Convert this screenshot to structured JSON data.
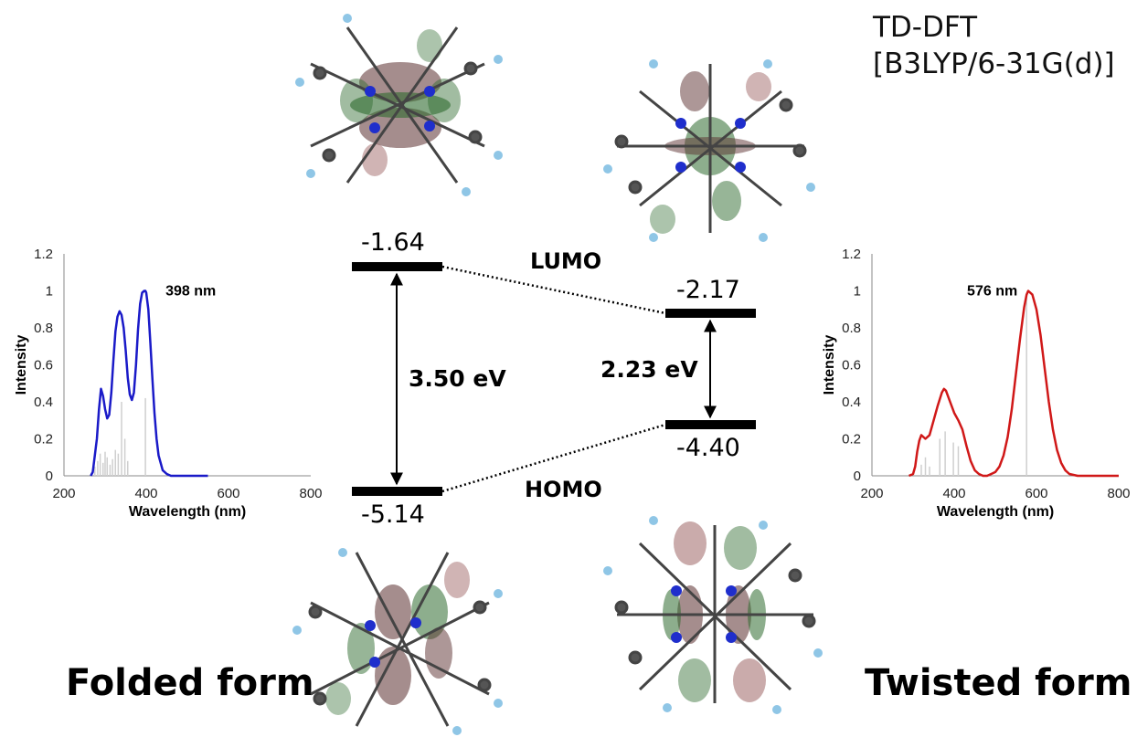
{
  "method": {
    "line1": "TD-DFT",
    "line2": "[B3LYP/6-31G(d)]"
  },
  "forms": {
    "folded": "Folded form",
    "twisted": "Twisted form"
  },
  "energy_diagram": {
    "lumo_label": "LUMO",
    "homo_label": "HOMO",
    "folded": {
      "lumo": "-1.64",
      "homo": "-5.14",
      "gap": "3.50 eV"
    },
    "twisted": {
      "lumo": "-2.17",
      "homo": "-4.40",
      "gap": "2.23 eV"
    }
  },
  "chart_data": [
    {
      "type": "line",
      "xlabel": "Wavelength (nm)",
      "ylabel": "Intensity",
      "xlim": [
        200,
        800
      ],
      "ylim": [
        0,
        1.2
      ],
      "xticks": [
        "200",
        "400",
        "600",
        "800"
      ],
      "yticks": [
        "0",
        "0.2",
        "0.4",
        "0.6",
        "0.8",
        "1",
        "1.2"
      ],
      "annotation": "398 nm",
      "color": "#1a1ac8",
      "grid": false,
      "series": [
        {
          "x": [
            265,
            270,
            280,
            285,
            290,
            295,
            300,
            305,
            310,
            315,
            320,
            325,
            330,
            335,
            340,
            345,
            350,
            355,
            360,
            365,
            370,
            375,
            380,
            385,
            390,
            395,
            398,
            400,
            405,
            410,
            415,
            420,
            425,
            430,
            440,
            450,
            460,
            480,
            500,
            520,
            550
          ],
          "y": [
            0,
            0.02,
            0.2,
            0.36,
            0.47,
            0.43,
            0.36,
            0.31,
            0.33,
            0.45,
            0.62,
            0.78,
            0.86,
            0.89,
            0.87,
            0.8,
            0.68,
            0.53,
            0.44,
            0.41,
            0.45,
            0.6,
            0.79,
            0.93,
            0.99,
            1.0,
            1.0,
            0.99,
            0.9,
            0.72,
            0.52,
            0.34,
            0.2,
            0.11,
            0.03,
            0.01,
            0,
            0,
            0,
            0,
            0
          ]
        }
      ],
      "sticks": {
        "x": [
          275,
          282,
          288,
          295,
          300,
          305,
          312,
          318,
          325,
          332,
          340,
          348,
          355,
          398
        ],
        "y": [
          0.05,
          0.08,
          0.12,
          0.07,
          0.13,
          0.1,
          0.06,
          0.09,
          0.14,
          0.12,
          0.4,
          0.2,
          0.08,
          0.42
        ]
      }
    },
    {
      "type": "line",
      "xlabel": "Wavelength (nm)",
      "ylabel": "Intensity",
      "xlim": [
        200,
        800
      ],
      "ylim": [
        0,
        1.2
      ],
      "xticks": [
        "200",
        "400",
        "600",
        "800"
      ],
      "yticks": [
        "0",
        "0.2",
        "0.4",
        "0.6",
        "0.8",
        "1",
        "1.2"
      ],
      "annotation": "576 nm",
      "color": "#d01818",
      "grid": false,
      "series": [
        {
          "x": [
            290,
            300,
            305,
            310,
            315,
            320,
            325,
            330,
            340,
            350,
            360,
            370,
            375,
            380,
            390,
            400,
            410,
            420,
            430,
            440,
            450,
            460,
            470,
            480,
            490,
            500,
            510,
            520,
            530,
            540,
            550,
            560,
            570,
            576,
            580,
            590,
            600,
            610,
            620,
            630,
            640,
            650,
            660,
            670,
            680,
            700,
            720,
            750,
            800
          ],
          "y": [
            0,
            0.01,
            0.05,
            0.13,
            0.19,
            0.22,
            0.21,
            0.2,
            0.22,
            0.3,
            0.38,
            0.45,
            0.47,
            0.46,
            0.4,
            0.34,
            0.3,
            0.25,
            0.16,
            0.08,
            0.03,
            0.01,
            0.0,
            0.0,
            0.01,
            0.02,
            0.05,
            0.11,
            0.21,
            0.36,
            0.55,
            0.74,
            0.91,
            0.98,
            1.0,
            0.98,
            0.9,
            0.76,
            0.58,
            0.4,
            0.25,
            0.14,
            0.07,
            0.03,
            0.01,
            0,
            0,
            0,
            0
          ]
        }
      ],
      "sticks": {
        "x": [
          320,
          330,
          340,
          365,
          378,
          398,
          410,
          576
        ],
        "y": [
          0.06,
          0.1,
          0.05,
          0.2,
          0.24,
          0.18,
          0.16,
          0.97
        ]
      }
    }
  ]
}
